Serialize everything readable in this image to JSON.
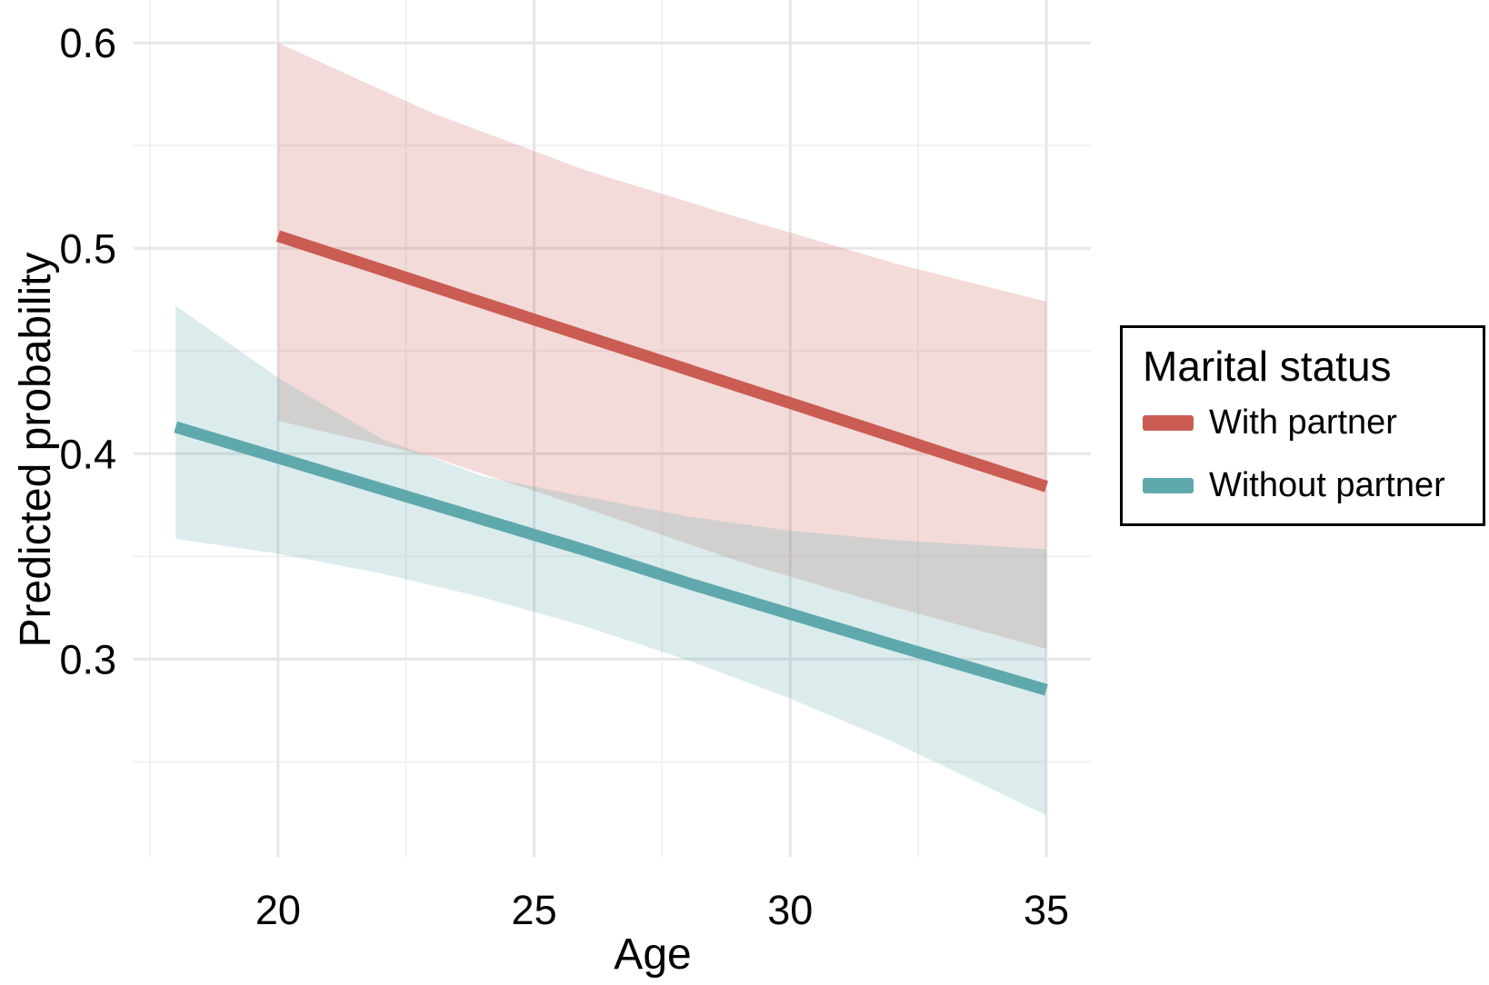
{
  "chart_data": {
    "type": "line",
    "title": "",
    "xlabel": "Age",
    "ylabel": "Predicted probability",
    "xlim": [
      17.18,
      35.87
    ],
    "ylim": [
      0.2037,
      0.6209
    ],
    "x_ticks": {
      "values": [
        20,
        25,
        30,
        35
      ],
      "labels": [
        "20",
        "25",
        "30",
        "35"
      ]
    },
    "x_minor": [
      17.5,
      22.5,
      27.5,
      32.5
    ],
    "y_ticks": {
      "values": [
        0.6,
        0.5,
        0.4,
        0.3
      ],
      "labels": [
        "0.6",
        "0.5",
        "0.4",
        "0.3"
      ]
    },
    "y_minor": [
      0.55,
      0.45,
      0.35,
      0.25
    ],
    "grid": true,
    "ribbon_opacity": 0.22,
    "colors": {
      "with_partner": "#CA5C53",
      "without_partner": "#5FA9AD",
      "grid_major": "#E6E6E6",
      "grid_minor": "#F1F1F1",
      "text": "#000000",
      "panel_background": "#FFFFFF"
    },
    "legend": {
      "title": "Marital status",
      "position": "right",
      "entries": [
        {
          "label": "With partner",
          "color": "#CA5C53"
        },
        {
          "label": "Without partner",
          "color": "#5FA9AD"
        }
      ]
    },
    "series": [
      {
        "name": "With partner",
        "color": "#CA5C53",
        "x": [
          20,
          23,
          26,
          29,
          32,
          35
        ],
        "y": [
          0.506,
          0.4816,
          0.4572,
          0.4328,
          0.4084,
          0.384
        ],
        "ci_upper": [
          0.6,
          0.566,
          0.538,
          0.515,
          0.493,
          0.474
        ],
        "ci_lower": [
          0.416,
          0.3985,
          0.3735,
          0.3475,
          0.3255,
          0.305
        ]
      },
      {
        "name": "Without partner",
        "color": "#5FA9AD",
        "x": [
          18,
          20,
          22,
          24,
          26,
          28,
          30,
          32,
          35
        ],
        "y": [
          0.413,
          0.398,
          0.383,
          0.368,
          0.353,
          0.337,
          0.322,
          0.307,
          0.285
        ],
        "ci_upper": [
          0.472,
          0.437,
          0.4075,
          0.389,
          0.379,
          0.3695,
          0.3625,
          0.358,
          0.3535
        ],
        "ci_lower": [
          0.3585,
          0.3513,
          0.3418,
          0.33,
          0.3159,
          0.2995,
          0.2808,
          0.2598,
          0.224
        ]
      }
    ]
  }
}
